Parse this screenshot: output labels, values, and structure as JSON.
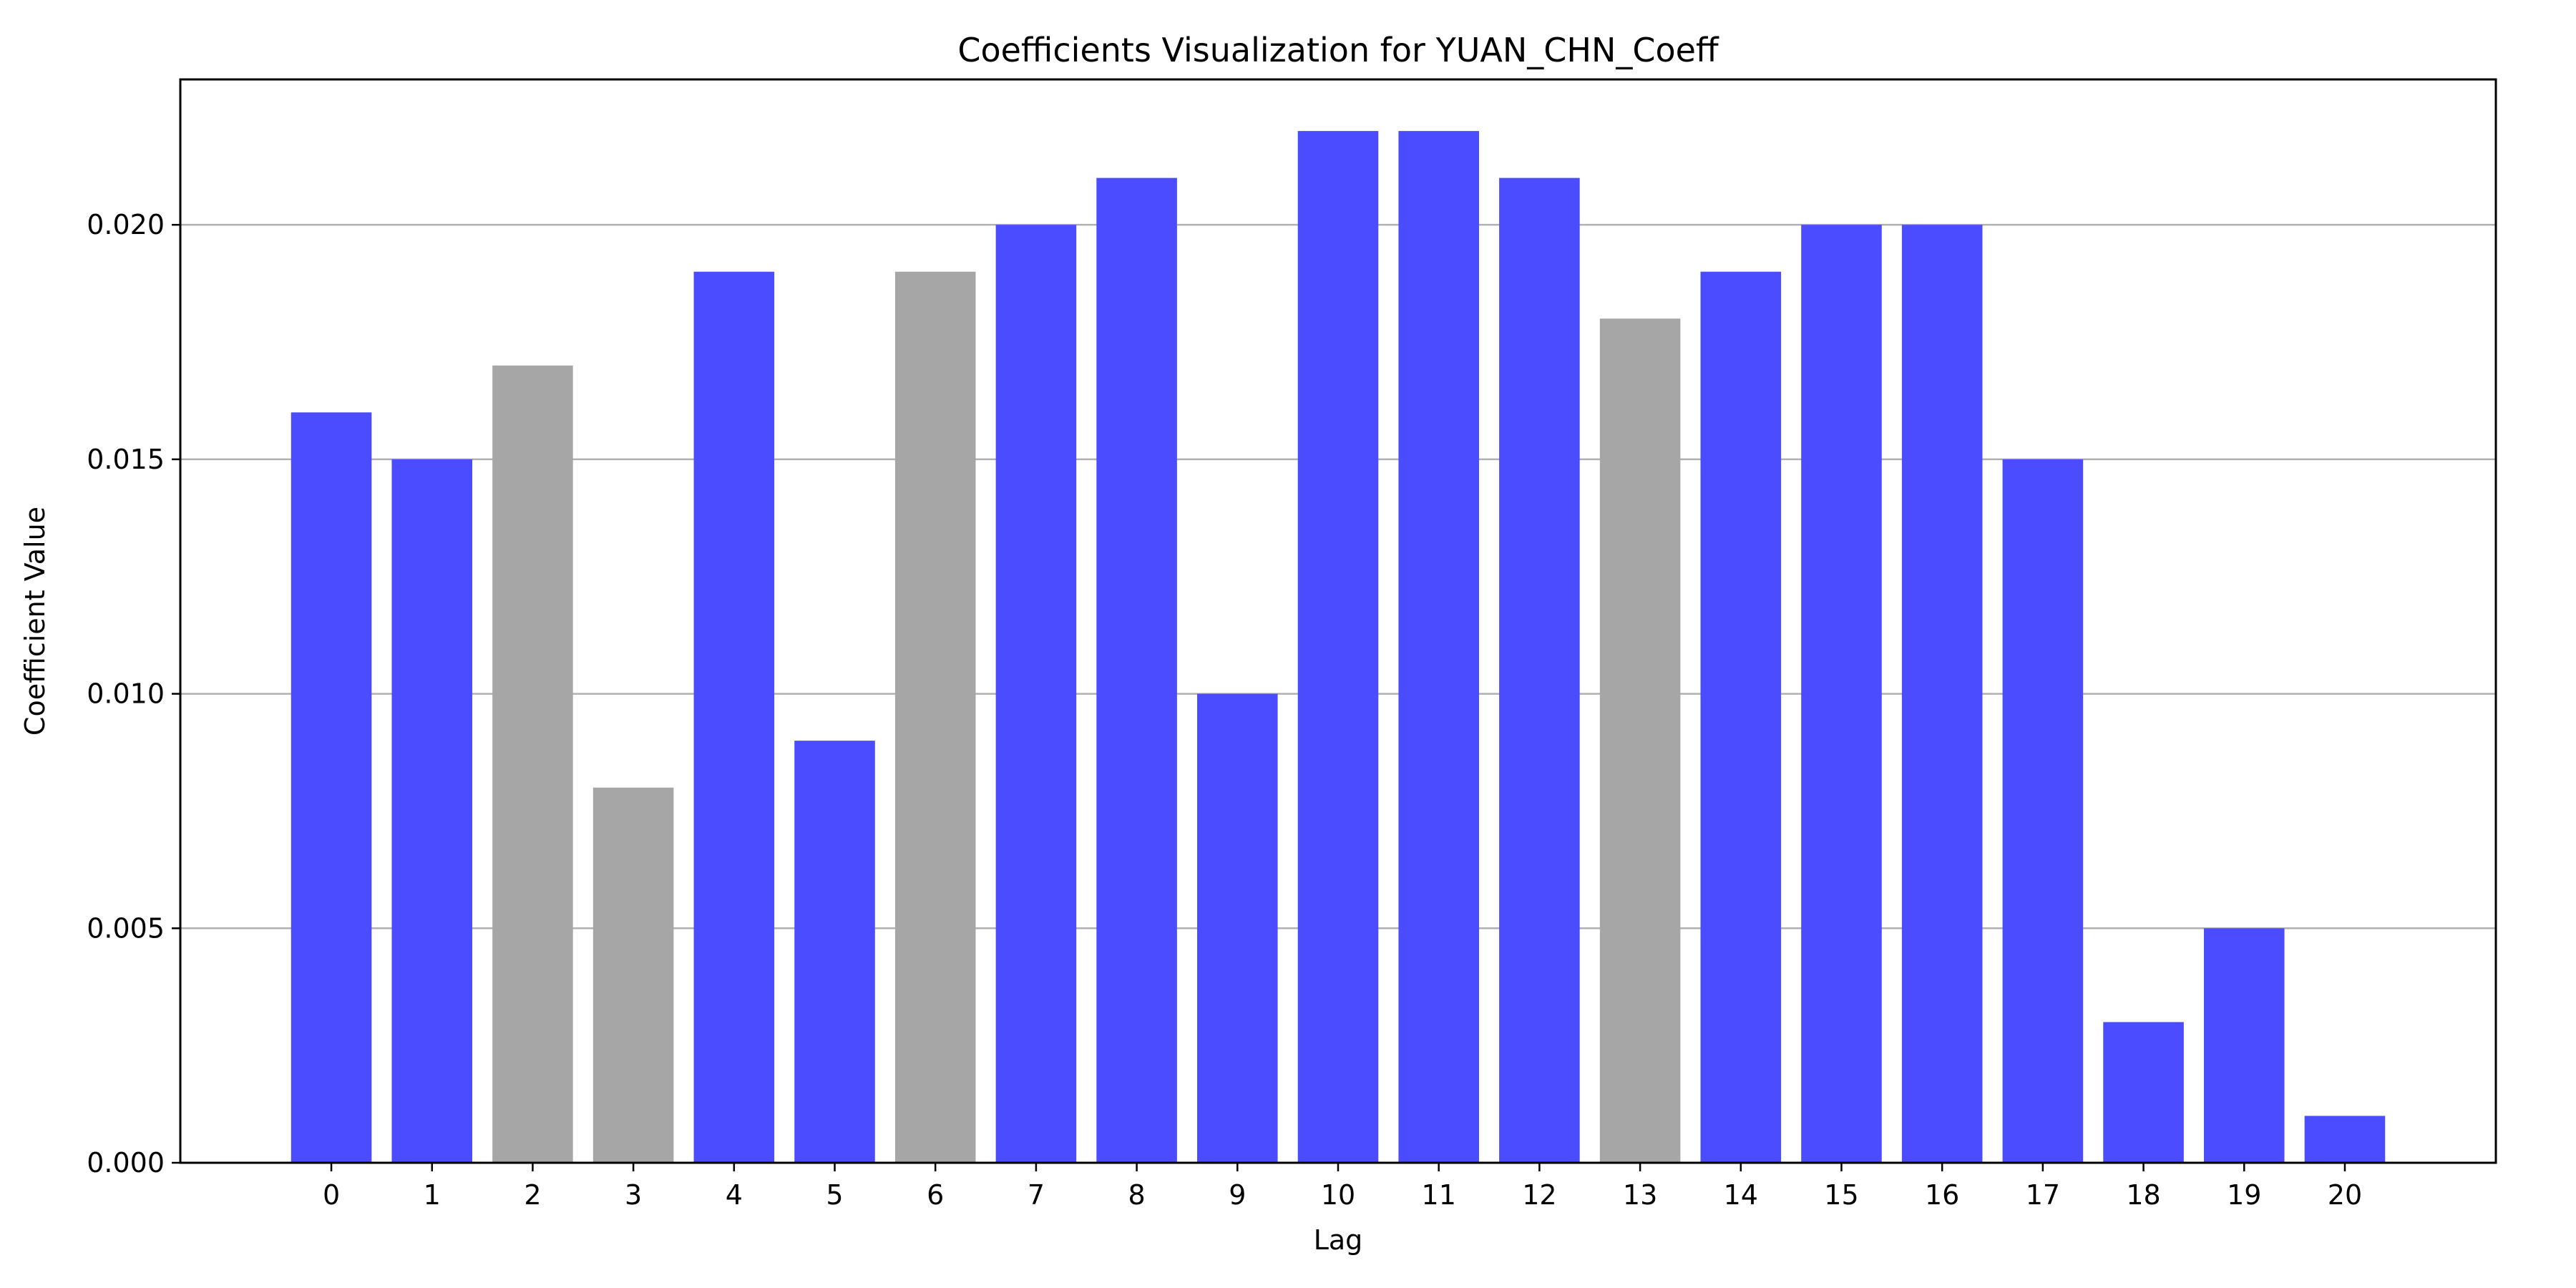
{
  "chart_data": {
    "type": "bar",
    "title": "Coefficients Visualization for YUAN_CHN_Coeff",
    "xlabel": "Lag",
    "ylabel": "Coefficient Value",
    "categories": [
      "0",
      "1",
      "2",
      "3",
      "4",
      "5",
      "6",
      "7",
      "8",
      "9",
      "10",
      "11",
      "12",
      "13",
      "14",
      "15",
      "16",
      "17",
      "18",
      "19",
      "20"
    ],
    "values": [
      0.016,
      0.015,
      0.017,
      0.008,
      0.019,
      0.009,
      0.019,
      0.02,
      0.021,
      0.01,
      0.022,
      0.022,
      0.021,
      0.018,
      0.019,
      0.02,
      0.02,
      0.015,
      0.003,
      0.005,
      0.001
    ],
    "bar_colors": [
      "#4b4bff",
      "#4b4bff",
      "#a6a6a6",
      "#a6a6a6",
      "#4b4bff",
      "#4b4bff",
      "#a6a6a6",
      "#4b4bff",
      "#4b4bff",
      "#4b4bff",
      "#4b4bff",
      "#4b4bff",
      "#4b4bff",
      "#a6a6a6",
      "#4b4bff",
      "#4b4bff",
      "#4b4bff",
      "#4b4bff",
      "#4b4bff",
      "#4b4bff",
      "#4b4bff"
    ],
    "yticks": [
      "0.000",
      "0.005",
      "0.010",
      "0.015",
      "0.020"
    ],
    "ylim": [
      0,
      0.0231
    ],
    "xlim": [
      -1.5,
      21.5
    ],
    "grid": "y",
    "legend": "none"
  }
}
